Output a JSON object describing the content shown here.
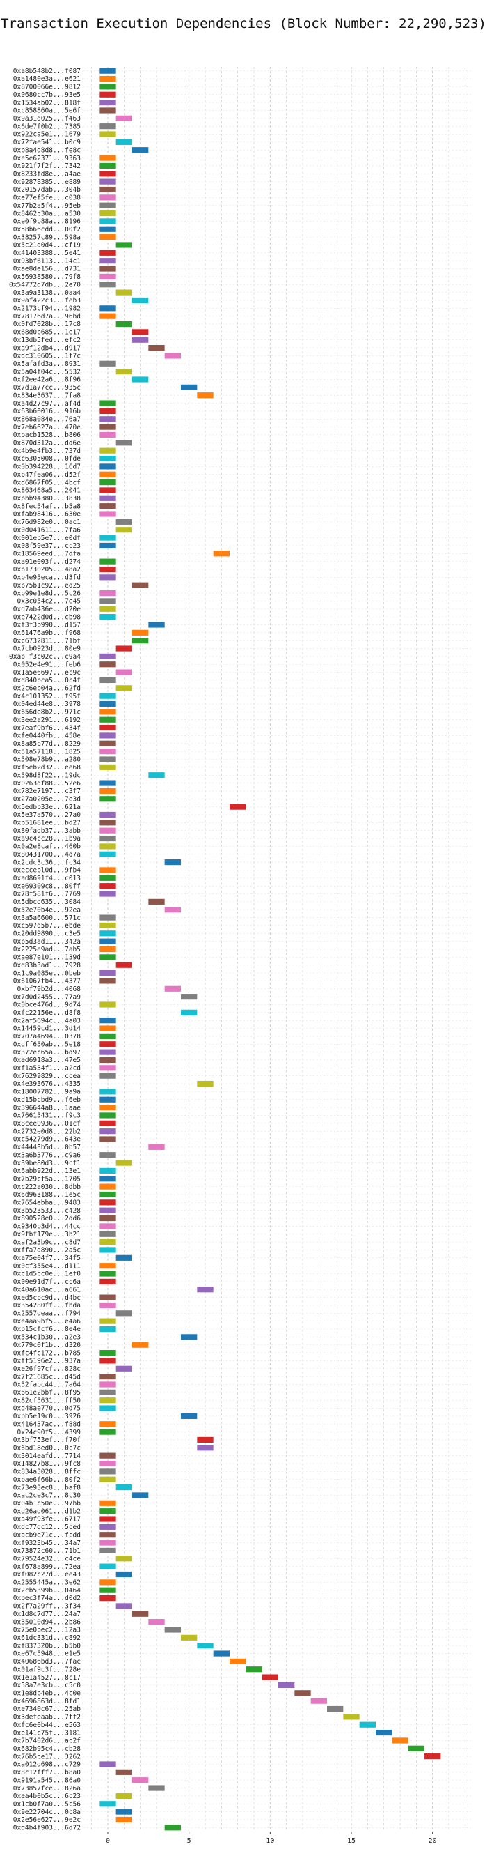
{
  "chart_data": {
    "type": "gantt-bar",
    "title": "Transaction Execution Dependencies (Block Number: 22,290,523)",
    "xlim": [
      -1.5,
      22.5
    ],
    "xticks": [
      0,
      5,
      10,
      15,
      20
    ],
    "grid": true,
    "palette": [
      "#1f77b4",
      "#ff7f0e",
      "#2ca02c",
      "#d62728",
      "#9467bd",
      "#8c564b",
      "#e377c2",
      "#7f7f7f",
      "#bcbd22",
      "#17becf"
    ],
    "transactions": [
      {
        "label": "0xa8b548b2...f087",
        "x": 0
      },
      {
        "label": "0xa1480e3a...e621",
        "x": 0
      },
      {
        "label": "0x8700066e...9812",
        "x": 0
      },
      {
        "label": "0x0680cc7b...93e5",
        "x": 0
      },
      {
        "label": "0x1534ab02...818f",
        "x": 0
      },
      {
        "label": "0xc858860a...5e6f",
        "x": 0
      },
      {
        "label": "0x9a31d025...f463",
        "x": 1
      },
      {
        "label": "0x6de7f0b2...7385",
        "x": 0
      },
      {
        "label": "0x922ca5e1...1679",
        "x": 0
      },
      {
        "label": "0x72fae541...b0c9",
        "x": 1
      },
      {
        "label": "0xb8a4d8d8...fe8c",
        "x": 2
      },
      {
        "label": "0xe5e62371...9363",
        "x": 0
      },
      {
        "label": "0x921f7f2f...7342",
        "x": 0
      },
      {
        "label": "0x8233fd8e...a4ae",
        "x": 0
      },
      {
        "label": "0x92878385...e889",
        "x": 0
      },
      {
        "label": "0x20157dab...304b",
        "x": 0
      },
      {
        "label": "0xe77ef5fe...c038",
        "x": 0
      },
      {
        "label": "0x77b2a5f4...95eb",
        "x": 0
      },
      {
        "label": "0x8462c30a...a530",
        "x": 0
      },
      {
        "label": "0xe0f9b88a...8196",
        "x": 0
      },
      {
        "label": "0x58b66cdd...00f2",
        "x": 0
      },
      {
        "label": "0x38257c89...598a",
        "x": 0
      },
      {
        "label": "0x5c21d0d4...cf19",
        "x": 1
      },
      {
        "label": "0x41403388...5e41",
        "x": 0
      },
      {
        "label": "0x93bf6113...14c1",
        "x": 0
      },
      {
        "label": "0xae8de156...d731",
        "x": 0
      },
      {
        "label": "0x56938580...79f8",
        "x": 0
      },
      {
        "label": "0x54772d7db...2e70",
        "x": 0
      },
      {
        "label": "0x3a9a3138...0aa4",
        "x": 1
      },
      {
        "label": "0x9af422c3...feb3",
        "x": 2
      },
      {
        "label": "0x2173cf94...1982",
        "x": 0
      },
      {
        "label": "0x78176d7a...96bd",
        "x": 0
      },
      {
        "label": "0x0fd7028b...17c8",
        "x": 1
      },
      {
        "label": "0x68d0b685...1e17",
        "x": 2
      },
      {
        "label": "0x13db5fed...efc2",
        "x": 2
      },
      {
        "label": "0xa9f12db4...d917",
        "x": 3
      },
      {
        "label": "0xdc310605...1f7c",
        "x": 4
      },
      {
        "label": "0x5afafd3a...8931",
        "x": 0
      },
      {
        "label": "0x5a04f04c...5532",
        "x": 1
      },
      {
        "label": "0xf2ee42a6...8f96",
        "x": 2
      },
      {
        "label": "0x7d1a77cc...935c",
        "x": 5
      },
      {
        "label": "0x834e3637...7fa8",
        "x": 6
      },
      {
        "label": "0xa4d27c97...af4d",
        "x": 0
      },
      {
        "label": "0x63b60016...916b",
        "x": 0
      },
      {
        "label": "0x868a084e...76a7",
        "x": 0
      },
      {
        "label": "0x7eb6627a...470e",
        "x": 0
      },
      {
        "label": "0xbacb1528...b806",
        "x": 0
      },
      {
        "label": "0x870d312a...dd6e",
        "x": 1
      },
      {
        "label": "0x4b9e4fb3...737d",
        "x": 0
      },
      {
        "label": "0xc6305008...0fde",
        "x": 0
      },
      {
        "label": "0x0b394228...16d7",
        "x": 0
      },
      {
        "label": "0xb47fea06...d52f",
        "x": 0
      },
      {
        "label": "0xd6867f05...4bcf",
        "x": 0
      },
      {
        "label": "0x863468a5...2041",
        "x": 0
      },
      {
        "label": "0xbbb94380...3838",
        "x": 0
      },
      {
        "label": "0x8fec54af...b5a8",
        "x": 0
      },
      {
        "label": "0xfab98416...630e",
        "x": 0
      },
      {
        "label": "0x76d982e0...0ac1",
        "x": 1
      },
      {
        "label": "0x0d041611...7fa6",
        "x": 1
      },
      {
        "label": "0x001eb5e7...e0df",
        "x": 0
      },
      {
        "label": "0x08f59e37...cc23",
        "x": 0
      },
      {
        "label": "0x18569eed...7dfa",
        "x": 7
      },
      {
        "label": "0xa01e003f...d274",
        "x": 0
      },
      {
        "label": "0xb1730205...48a2",
        "x": 0
      },
      {
        "label": "0xb4e95eca...d3fd",
        "x": 0
      },
      {
        "label": "0xb75b1c92...ed25",
        "x": 2
      },
      {
        "label": "0xb99e1e8d...5c26",
        "x": 0
      },
      {
        "label": "0x3c054c2...7e45",
        "x": 0
      },
      {
        "label": "0xd7ab436e...d20e",
        "x": 0
      },
      {
        "label": "0xe7422d0d...cb98",
        "x": 0
      },
      {
        "label": "0xf3f3b990...d157",
        "x": 3
      },
      {
        "label": "0x61476a9b...f968",
        "x": 2
      },
      {
        "label": "0xc6732811...71bf",
        "x": 2
      },
      {
        "label": "0x7cb0923d...80e9",
        "x": 1
      },
      {
        "label": "0xab f3c02c...c9a4",
        "x": 0
      },
      {
        "label": "0x052e4e91...feb6",
        "x": 0
      },
      {
        "label": "0x1a5e6697...ec9c",
        "x": 1
      },
      {
        "label": "0xd840bca5...0c4f",
        "x": 0
      },
      {
        "label": "0x2c6eb04a...62fd",
        "x": 1
      },
      {
        "label": "0x4c101352...f95f",
        "x": 0
      },
      {
        "label": "0x04ed44e8...3978",
        "x": 0
      },
      {
        "label": "0x656de8b2...971c",
        "x": 0
      },
      {
        "label": "0x3ee2a291...6192",
        "x": 0
      },
      {
        "label": "0x7eaf9bf6...434f",
        "x": 0
      },
      {
        "label": "0xfe0440fb...458e",
        "x": 0
      },
      {
        "label": "0x8a85b77d...8229",
        "x": 0
      },
      {
        "label": "0x51a57118...1825",
        "x": 0
      },
      {
        "label": "0x508e78b9...a280",
        "x": 0
      },
      {
        "label": "0xf5eb2d32...ee68",
        "x": 0
      },
      {
        "label": "0x598d8f22...19dc",
        "x": 3
      },
      {
        "label": "0x0263df88...52e6",
        "x": 0
      },
      {
        "label": "0x782e7197...c3f7",
        "x": 0
      },
      {
        "label": "0x27a0205e...7e3d",
        "x": 0
      },
      {
        "label": "0x5edbb33e...621a",
        "x": 8
      },
      {
        "label": "0x5e37a570...27a0",
        "x": 0
      },
      {
        "label": "0xb51681ee...bd27",
        "x": 0
      },
      {
        "label": "0x80fadb37...3abb",
        "x": 0
      },
      {
        "label": "0xa9c4cc28...1b9a",
        "x": 0
      },
      {
        "label": "0x0a2e8caf...460b",
        "x": 0
      },
      {
        "label": "0x80431700...4d7a",
        "x": 0
      },
      {
        "label": "0x2cdc3c36...fc34",
        "x": 4
      },
      {
        "label": "0xeccebl0d...9fb4",
        "x": 0
      },
      {
        "label": "0xad8691f4...c013",
        "x": 0
      },
      {
        "label": "0xe69309c8...80ff",
        "x": 0
      },
      {
        "label": "0x78f581f6...7769",
        "x": 0
      },
      {
        "label": "0x5dbcd635...3084",
        "x": 3
      },
      {
        "label": "0x52e70b4e...92ea",
        "x": 4
      },
      {
        "label": "0x3a5a6600...571c",
        "x": 0
      },
      {
        "label": "0xc597d5b7...ebde",
        "x": 0
      },
      {
        "label": "0x20dd9890...c3e5",
        "x": 0
      },
      {
        "label": "0xb5d3ad11...342a",
        "x": 0
      },
      {
        "label": "0x2225e9ad...7ab5",
        "x": 0
      },
      {
        "label": "0xae87e101...139d",
        "x": 0
      },
      {
        "label": "0xd83b3ad1...7928",
        "x": 1
      },
      {
        "label": "0x1c9a085e...0beb",
        "x": 0
      },
      {
        "label": "0x61067fb4...4377",
        "x": 0
      },
      {
        "label": "0xbf79b2d...4068",
        "x": 4
      },
      {
        "label": "0x7d0d2455...77a9",
        "x": 5
      },
      {
        "label": "0x0bce476d...9d74",
        "x": 0
      },
      {
        "label": "0xfc22156e...d8f8",
        "x": 5
      },
      {
        "label": "0x2af5694c...4a03",
        "x": 0
      },
      {
        "label": "0x14459cd1...3d14",
        "x": 0
      },
      {
        "label": "0x707a4694...0378",
        "x": 0
      },
      {
        "label": "0xdff650ab...5e18",
        "x": 0
      },
      {
        "label": "0x372ec65a...bd97",
        "x": 0
      },
      {
        "label": "0xed6918a3...47e5",
        "x": 0
      },
      {
        "label": "0xf1a534f1...a2cd",
        "x": 0
      },
      {
        "label": "0x76299829...ccea",
        "x": 0
      },
      {
        "label": "0x4e393676...4335",
        "x": 6
      },
      {
        "label": "0x18007782...9a9a",
        "x": 0
      },
      {
        "label": "0xd15bcbd9...f6eb",
        "x": 0
      },
      {
        "label": "0x396644a8...1aae",
        "x": 0
      },
      {
        "label": "0x76615431...f9c3",
        "x": 0
      },
      {
        "label": "0x8cee0936...01cf",
        "x": 0
      },
      {
        "label": "0x2732e0d8...22b2",
        "x": 0
      },
      {
        "label": "0xc54279d9...643e",
        "x": 0
      },
      {
        "label": "0x44443b5d...0b57",
        "x": 3
      },
      {
        "label": "0x3a6b3776...c9a6",
        "x": 0
      },
      {
        "label": "0x39be80d3...9cf1",
        "x": 1
      },
      {
        "label": "0x6abb922d...13e1",
        "x": 0
      },
      {
        "label": "0x7b29cf5a...1705",
        "x": 0
      },
      {
        "label": "0xc222a030...8dbb",
        "x": 0
      },
      {
        "label": "0x6d963188...1e5c",
        "x": 0
      },
      {
        "label": "0x7654ebba...9483",
        "x": 0
      },
      {
        "label": "0x3b523533...c428",
        "x": 0
      },
      {
        "label": "0x890528e0...2dd6",
        "x": 0
      },
      {
        "label": "0x9340b3d4...44cc",
        "x": 0
      },
      {
        "label": "0x9fbf179e...3b21",
        "x": 0
      },
      {
        "label": "0xaf2a3b9c...c8d7",
        "x": 0
      },
      {
        "label": "0xffa7d890...2a5c",
        "x": 0
      },
      {
        "label": "0xa75e04f7...34f5",
        "x": 1
      },
      {
        "label": "0x0cf355e4...d111",
        "x": 0
      },
      {
        "label": "0xc1d5cc0e...1ef0",
        "x": 0
      },
      {
        "label": "0x00e91d7f...cc6a",
        "x": 0
      },
      {
        "label": "0x40a610ac...a661",
        "x": 6
      },
      {
        "label": "0xed5cbc9d...d4bc",
        "x": 0
      },
      {
        "label": "0x354280ff...fbda",
        "x": 0
      },
      {
        "label": "0x2557deaa...f794",
        "x": 1
      },
      {
        "label": "0xe4aa9bf5...e4a6",
        "x": 0
      },
      {
        "label": "0xb15cfcf6...8e4e",
        "x": 0
      },
      {
        "label": "0x534c1b30...a2e3",
        "x": 5
      },
      {
        "label": "0x779c0f1b...d320",
        "x": 2
      },
      {
        "label": "0xfc4fc172...b785",
        "x": 0
      },
      {
        "label": "0xff5196e2...937a",
        "x": 0
      },
      {
        "label": "0xe26f97cf...828c",
        "x": 1
      },
      {
        "label": "0x7f21685c...d45d",
        "x": 0
      },
      {
        "label": "0x52fabc44...7a64",
        "x": 0
      },
      {
        "label": "0x661e2bbf...8f95",
        "x": 0
      },
      {
        "label": "0x82cf5631...ff50",
        "x": 0
      },
      {
        "label": "0xd48ae770...0d75",
        "x": 0
      },
      {
        "label": "0xbb5e19c0...3926",
        "x": 5
      },
      {
        "label": "0x416437ac...f88d",
        "x": 0
      },
      {
        "label": "0x24c90f5...4399",
        "x": 0
      },
      {
        "label": "0x3bf753ef...f70f",
        "x": 6
      },
      {
        "label": "0x6bd18ed0...0c7c",
        "x": 6
      },
      {
        "label": "0x3014eafd...7714",
        "x": 0
      },
      {
        "label": "0x14827b81...9fc8",
        "x": 0
      },
      {
        "label": "0x834a3028...8ffc",
        "x": 0
      },
      {
        "label": "0xbae6f66b...80f2",
        "x": 0
      },
      {
        "label": "0x73e93ec8...baf8",
        "x": 1
      },
      {
        "label": "0xac2ce3c7...8c30",
        "x": 2
      },
      {
        "label": "0x04b1c50e...97bb",
        "x": 0
      },
      {
        "label": "0xd26ad061...d1b2",
        "x": 0
      },
      {
        "label": "0xa49f93fe...6717",
        "x": 0
      },
      {
        "label": "0xdc77dc12...5ced",
        "x": 0
      },
      {
        "label": "0xdcb9e71c...fcdd",
        "x": 0
      },
      {
        "label": "0xf9323b45...34a7",
        "x": 0
      },
      {
        "label": "0x73872c60...71b1",
        "x": 0
      },
      {
        "label": "0x79524e32...c4ce",
        "x": 1
      },
      {
        "label": "0xf678a899...72ea",
        "x": 0
      },
      {
        "label": "0xf082c27d...ee43",
        "x": 1
      },
      {
        "label": "0x2555445a...3e62",
        "x": 0
      },
      {
        "label": "0x2cb5399b...0464",
        "x": 0
      },
      {
        "label": "0xbec3f74a...d0d2",
        "x": 0
      },
      {
        "label": "0x2f7a29ff...3f34",
        "x": 1
      },
      {
        "label": "0x1d8c7d77...24a7",
        "x": 2
      },
      {
        "label": "0x35010d94...2b86",
        "x": 3
      },
      {
        "label": "0x75e0bec2...12a3",
        "x": 4
      },
      {
        "label": "0x61dc331d...c892",
        "x": 5
      },
      {
        "label": "0xf837320b...b5b0",
        "x": 6
      },
      {
        "label": "0xe67c5948...e1e5",
        "x": 7
      },
      {
        "label": "0x40686bd3...7fac",
        "x": 8
      },
      {
        "label": "0x01af9c3f...728e",
        "x": 9
      },
      {
        "label": "0x1e1a4527...8c17",
        "x": 10
      },
      {
        "label": "0x58a7e3cb...c5c0",
        "x": 11
      },
      {
        "label": "0x1e8db4eb...4c0e",
        "x": 12
      },
      {
        "label": "0x4696863d...8fd1",
        "x": 13
      },
      {
        "label": "0xe7340c67...25ab",
        "x": 14
      },
      {
        "label": "0x3defeaab...7ff2",
        "x": 15
      },
      {
        "label": "0xfc6e0b44...e563",
        "x": 16
      },
      {
        "label": "0xe141c75f...3181",
        "x": 17
      },
      {
        "label": "0x7b7402d6...ac2f",
        "x": 18
      },
      {
        "label": "0x682b95c4...cb28",
        "x": 19
      },
      {
        "label": "0x76b5ce17...3262",
        "x": 20
      },
      {
        "label": "0xa012d698...c729",
        "x": 0
      },
      {
        "label": "0x8c12fff7...b8a0",
        "x": 1
      },
      {
        "label": "0x9191a545...86a0",
        "x": 2
      },
      {
        "label": "0x73857fce...826a",
        "x": 3
      },
      {
        "label": "0xea4b0b5c...6c23",
        "x": 1
      },
      {
        "label": "0x1cb0f7a0...5c56",
        "x": 0
      },
      {
        "label": "0x9e22704c...0c8a",
        "x": 1
      },
      {
        "label": "0x2e56e627...9e2c",
        "x": 1
      },
      {
        "label": "0xd4b4f903...6d72",
        "x": 4
      }
    ]
  }
}
